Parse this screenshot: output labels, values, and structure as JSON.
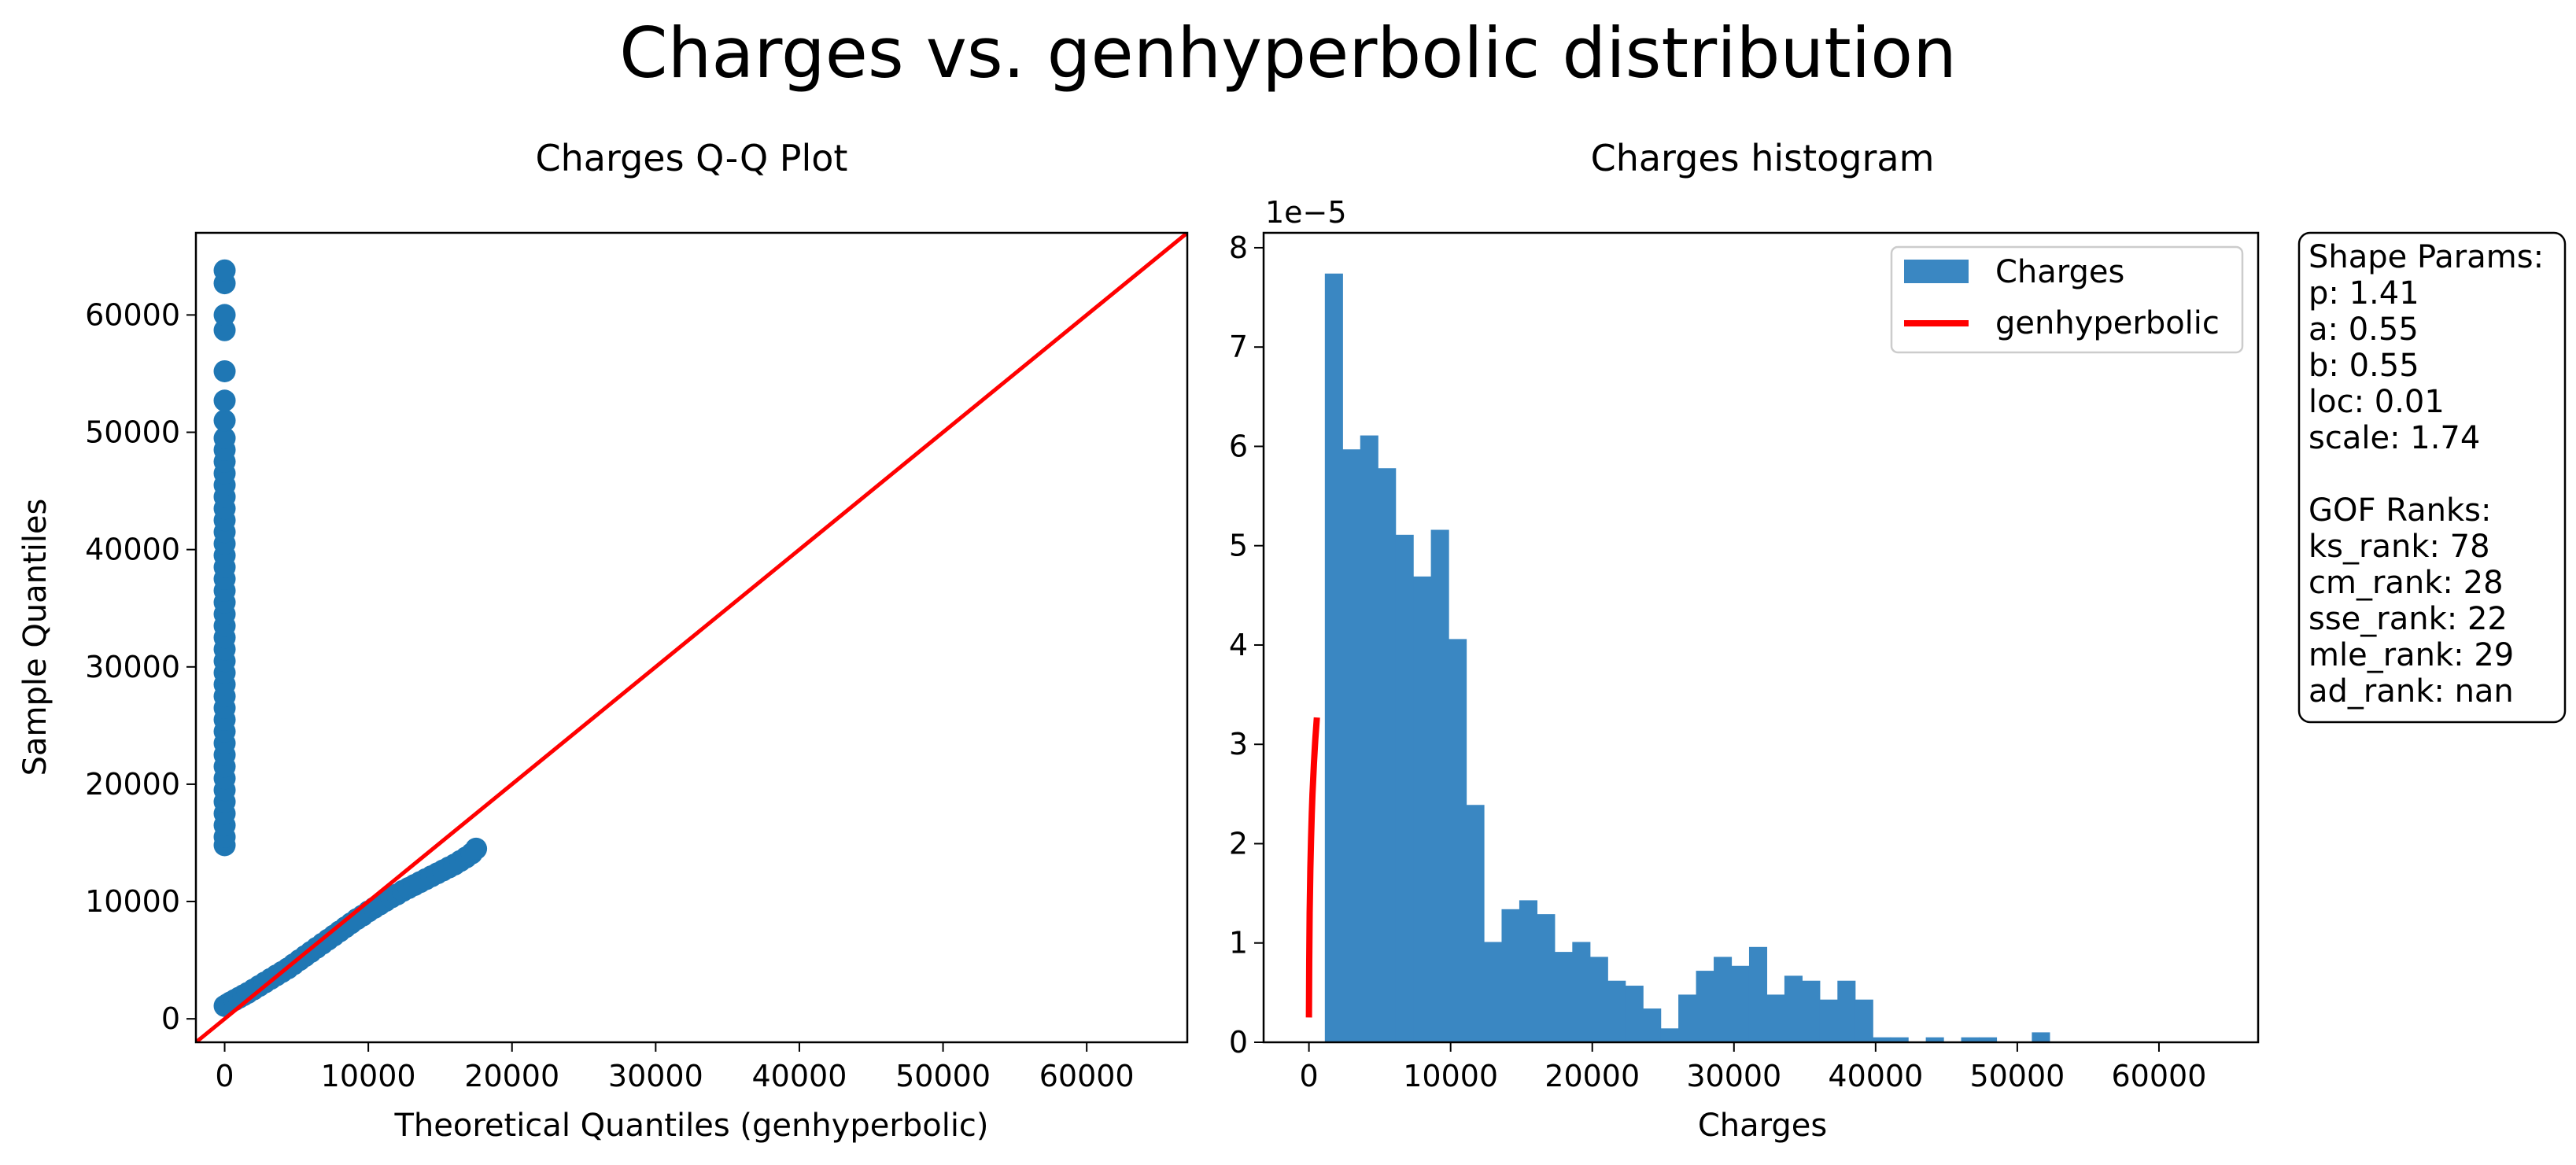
{
  "figure": {
    "title": "Charges vs. genhyperbolic distribution"
  },
  "chart_data": [
    {
      "type": "scatter",
      "title": "Charges Q-Q Plot",
      "xlabel": "Theoretical Quantiles (genhyperbolic)",
      "ylabel": "Sample Quantiles",
      "xlim": [
        -2000,
        67000
      ],
      "ylim": [
        -2000,
        67000
      ],
      "xticks": [
        0,
        10000,
        20000,
        30000,
        40000,
        50000,
        60000
      ],
      "xtick_labels": [
        "0",
        "10000",
        "20000",
        "30000",
        "40000",
        "50000",
        "60000"
      ],
      "yticks": [
        0,
        10000,
        20000,
        30000,
        40000,
        50000,
        60000
      ],
      "ytick_labels": [
        "0",
        "10000",
        "20000",
        "30000",
        "40000",
        "50000",
        "60000"
      ],
      "grid": false,
      "marker_color": "#1f77b4",
      "reference_line": {
        "color": "#ff0000",
        "from": [
          -2000,
          -2000
        ],
        "to": [
          67000,
          67000
        ]
      },
      "points": [
        [
          0,
          1100
        ],
        [
          200,
          1250
        ],
        [
          400,
          1400
        ],
        [
          700,
          1600
        ],
        [
          1000,
          1800
        ],
        [
          1300,
          2000
        ],
        [
          1600,
          2200
        ],
        [
          2000,
          2500
        ],
        [
          2400,
          2800
        ],
        [
          2800,
          3100
        ],
        [
          3200,
          3400
        ],
        [
          3600,
          3700
        ],
        [
          4000,
          4000
        ],
        [
          4400,
          4300
        ],
        [
          4800,
          4650
        ],
        [
          5200,
          5000
        ],
        [
          5600,
          5350
        ],
        [
          6000,
          5700
        ],
        [
          6400,
          6050
        ],
        [
          6800,
          6400
        ],
        [
          7200,
          6750
        ],
        [
          7600,
          7100
        ],
        [
          8000,
          7450
        ],
        [
          8400,
          7800
        ],
        [
          8800,
          8150
        ],
        [
          9200,
          8500
        ],
        [
          9600,
          8800
        ],
        [
          10000,
          9150
        ],
        [
          10400,
          9450
        ],
        [
          10800,
          9750
        ],
        [
          11200,
          10050
        ],
        [
          11600,
          10350
        ],
        [
          12000,
          10600
        ],
        [
          12400,
          10900
        ],
        [
          12800,
          11150
        ],
        [
          13200,
          11400
        ],
        [
          13600,
          11650
        ],
        [
          14000,
          11900
        ],
        [
          14400,
          12150
        ],
        [
          14800,
          12400
        ],
        [
          15200,
          12650
        ],
        [
          15600,
          12900
        ],
        [
          16000,
          13150
        ],
        [
          16400,
          13450
        ],
        [
          16800,
          13750
        ],
        [
          17200,
          14100
        ],
        [
          17500,
          14500
        ],
        [
          0,
          14800
        ],
        [
          0,
          15500
        ],
        [
          0,
          16500
        ],
        [
          0,
          17500
        ],
        [
          0,
          18500
        ],
        [
          0,
          19500
        ],
        [
          0,
          20500
        ],
        [
          0,
          21500
        ],
        [
          0,
          22500
        ],
        [
          0,
          23500
        ],
        [
          0,
          24500
        ],
        [
          0,
          25500
        ],
        [
          0,
          26500
        ],
        [
          0,
          27500
        ],
        [
          0,
          28500
        ],
        [
          0,
          29500
        ],
        [
          0,
          30500
        ],
        [
          0,
          31500
        ],
        [
          0,
          32500
        ],
        [
          0,
          33500
        ],
        [
          0,
          34500
        ],
        [
          0,
          35500
        ],
        [
          0,
          36500
        ],
        [
          0,
          37500
        ],
        [
          0,
          38500
        ],
        [
          0,
          39500
        ],
        [
          0,
          40500
        ],
        [
          0,
          41500
        ],
        [
          0,
          42500
        ],
        [
          0,
          43500
        ],
        [
          0,
          44500
        ],
        [
          0,
          45500
        ],
        [
          0,
          46500
        ],
        [
          0,
          47500
        ],
        [
          0,
          48500
        ],
        [
          0,
          49500
        ],
        [
          0,
          51000
        ],
        [
          0,
          52700
        ],
        [
          0,
          55200
        ],
        [
          0,
          58700
        ],
        [
          0,
          60000
        ],
        [
          0,
          62700
        ],
        [
          0,
          63800
        ]
      ]
    },
    {
      "type": "bar",
      "title": "Charges histogram",
      "xlabel": "Charges",
      "ylabel": "",
      "offset_label": "1e−5",
      "xlim": [
        -3200,
        67000
      ],
      "ylim": [
        0,
        8.15
      ],
      "xticks": [
        0,
        10000,
        20000,
        30000,
        40000,
        50000,
        60000
      ],
      "xtick_labels": [
        "0",
        "10000",
        "20000",
        "30000",
        "40000",
        "50000",
        "60000"
      ],
      "yticks": [
        0,
        1,
        2,
        3,
        4,
        5,
        6,
        7,
        8
      ],
      "ytick_labels": [
        "0",
        "1",
        "2",
        "3",
        "4",
        "5",
        "6",
        "7",
        "8"
      ],
      "grid": false,
      "bar_color": "#3a87c2",
      "bin_start": 1121.87,
      "bin_width": 1247.64,
      "values": [
        7.74,
        5.97,
        6.11,
        5.78,
        5.11,
        4.69,
        5.16,
        4.06,
        2.39,
        1.01,
        1.34,
        1.43,
        1.29,
        0.91,
        1.01,
        0.86,
        0.62,
        0.57,
        0.34,
        0.14,
        0.48,
        0.72,
        0.86,
        0.77,
        0.96,
        0.48,
        0.67,
        0.62,
        0.43,
        0.62,
        0.43,
        0.05,
        0.05,
        0.0,
        0.05,
        0.0,
        0.05,
        0.05,
        0.0,
        0.0,
        0.1
      ],
      "series": [
        {
          "name": "Charges",
          "kind": "histogram",
          "color": "#3a87c2"
        },
        {
          "name": "genhyperbolic",
          "kind": "line",
          "color": "#ff0000",
          "x": [
            0,
            20,
            50,
            100,
            150,
            200,
            250,
            300,
            350,
            400,
            450,
            500,
            560
          ],
          "y": [
            0.25,
            0.8,
            1.3,
            1.75,
            2.05,
            2.3,
            2.5,
            2.65,
            2.8,
            2.93,
            3.05,
            3.15,
            3.27
          ]
        }
      ],
      "legend_position": "upper right"
    }
  ],
  "annotation_box": {
    "lines": [
      "Shape Params:",
      "p: 1.41",
      "a: 0.55",
      "b: 0.55",
      "loc: 0.01",
      "scale: 1.74",
      "",
      "GOF Ranks:",
      "ks_rank: 78",
      "cm_rank: 28",
      "sse_rank: 22",
      "mle_rank: 29",
      "ad_rank: nan"
    ]
  }
}
